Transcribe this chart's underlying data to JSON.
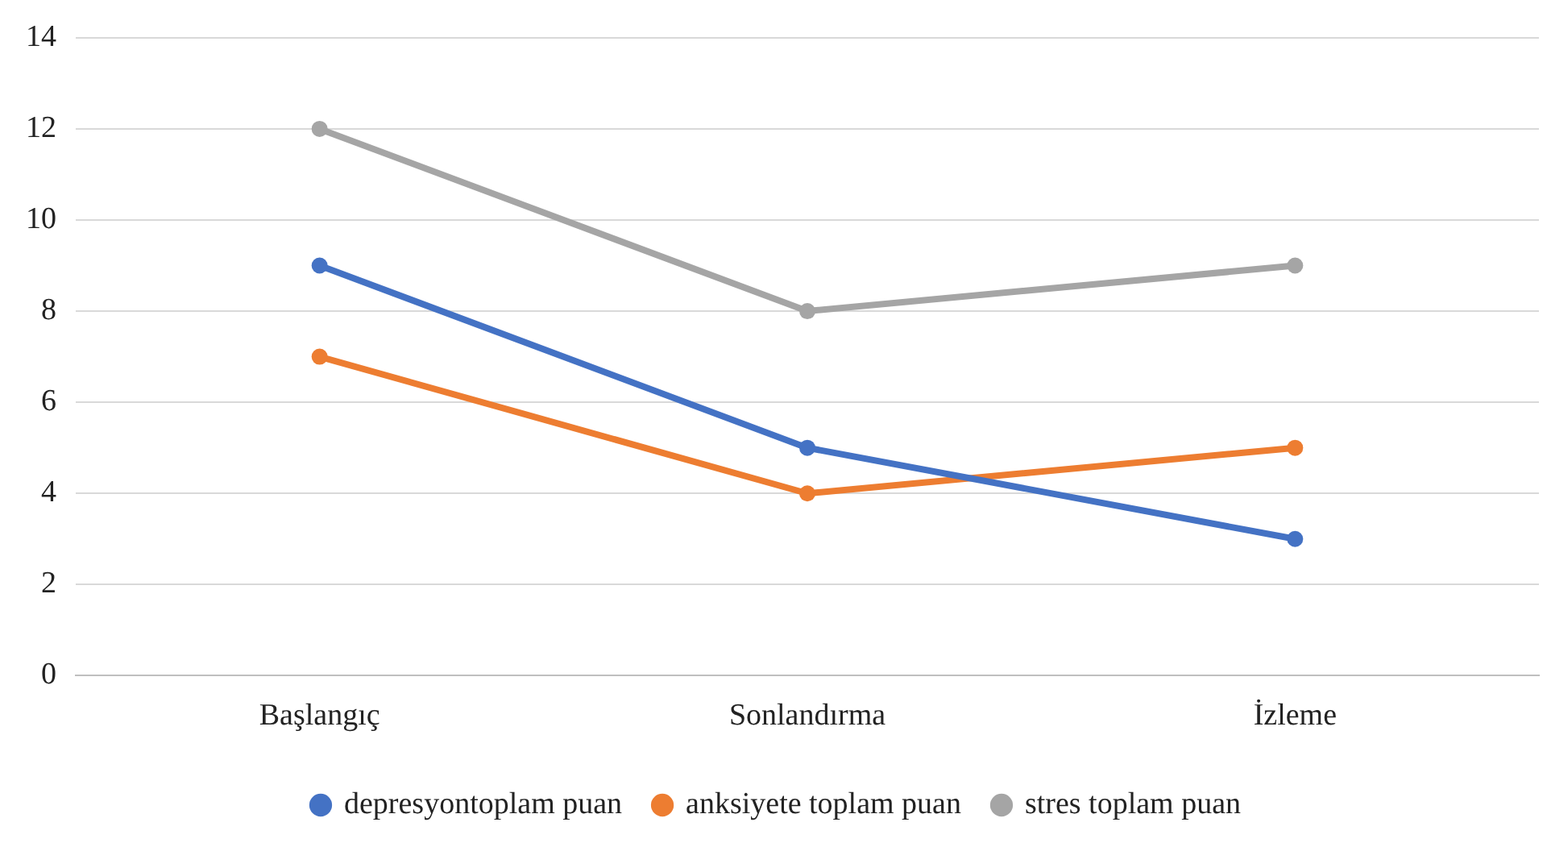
{
  "chart_data": {
    "type": "line",
    "categories": [
      "Başlangıç",
      "Sonlandırma",
      "İzleme"
    ],
    "series": [
      {
        "name": "depresyontoplam puan",
        "color": "#4472c4",
        "values": [
          9,
          5,
          3
        ]
      },
      {
        "name": "anksiyete toplam puan",
        "color": "#ed7d31",
        "values": [
          7,
          4,
          5
        ]
      },
      {
        "name": "stres toplam puan",
        "color": "#a5a5a5",
        "values": [
          12,
          8,
          9
        ]
      }
    ],
    "ylim": [
      0,
      14
    ],
    "yticks": [
      0,
      2,
      4,
      6,
      8,
      10,
      12,
      14
    ],
    "grid": "y",
    "legend": "bottom",
    "marker": "circle",
    "line_style": "solid"
  }
}
